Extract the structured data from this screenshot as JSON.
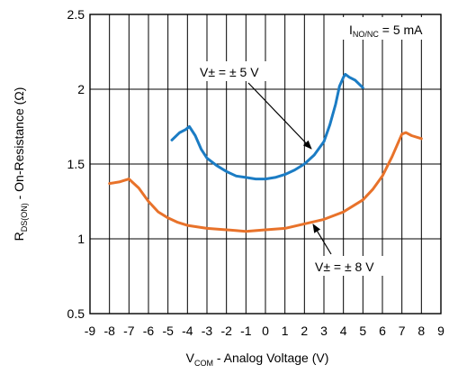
{
  "chart_data": {
    "type": "line",
    "xlabel": {
      "main": "V",
      "sub": "COM",
      "rest": " - Analog Voltage (V)"
    },
    "ylabel": {
      "main": "R",
      "sub": "DS(ON)",
      "rest": " - On-Resistance (Ω)"
    },
    "xlim": [
      -9,
      9
    ],
    "ylim": [
      0.5,
      2.5
    ],
    "x_ticks": [
      -9,
      -8,
      -7,
      -6,
      -5,
      -4,
      -3,
      -2,
      -1,
      0,
      1,
      2,
      3,
      4,
      5,
      6,
      7,
      8,
      9
    ],
    "y_ticks": [
      0.5,
      1,
      1.5,
      2,
      2.5
    ],
    "x_tick_labels": [
      "-9",
      "-8",
      "-7",
      "-6",
      "-5",
      "-4",
      "-3",
      "-2",
      "-1",
      "0",
      "1",
      "2",
      "3",
      "4",
      "5",
      "6",
      "7",
      "8",
      "9"
    ],
    "y_tick_labels": [
      "0.5",
      "1",
      "1.5",
      "2",
      "2.5"
    ],
    "grid": true,
    "series": [
      {
        "name": "V± = ± 5 V",
        "color": "#1b7cc4",
        "x": [
          -4.8,
          -4.4,
          -4.1,
          -3.9,
          -3.6,
          -3.3,
          -3.0,
          -2.5,
          -2.0,
          -1.5,
          -1.0,
          -0.5,
          0.0,
          0.5,
          1.0,
          1.5,
          2.0,
          2.5,
          3.0,
          3.3,
          3.6,
          3.8,
          4.0,
          4.1,
          4.3,
          4.6,
          5.0
        ],
        "y": [
          1.66,
          1.71,
          1.73,
          1.75,
          1.69,
          1.6,
          1.54,
          1.49,
          1.45,
          1.42,
          1.41,
          1.4,
          1.4,
          1.41,
          1.43,
          1.46,
          1.5,
          1.56,
          1.65,
          1.76,
          1.9,
          2.02,
          2.08,
          2.1,
          2.08,
          2.06,
          2.01
        ]
      },
      {
        "name": "V± = ± 8 V",
        "color": "#e8722a",
        "x": [
          -8.0,
          -7.5,
          -7.0,
          -6.5,
          -6.0,
          -5.5,
          -5.0,
          -4.5,
          -4.0,
          -3.0,
          -2.0,
          -1.0,
          0.0,
          1.0,
          2.0,
          3.0,
          4.0,
          5.0,
          5.5,
          6.0,
          6.5,
          6.8,
          7.0,
          7.2,
          7.5,
          8.0
        ],
        "y": [
          1.37,
          1.38,
          1.4,
          1.34,
          1.25,
          1.18,
          1.14,
          1.11,
          1.09,
          1.07,
          1.06,
          1.05,
          1.06,
          1.07,
          1.1,
          1.13,
          1.18,
          1.26,
          1.33,
          1.42,
          1.55,
          1.64,
          1.7,
          1.71,
          1.69,
          1.67
        ]
      }
    ],
    "annotations": {
      "condition": {
        "main": "I",
        "sub": "NO/NC",
        "rest": " = 5 mA"
      },
      "label_5v": "V± = ± 5 V",
      "label_8v": "V± = ± 8 V"
    }
  }
}
